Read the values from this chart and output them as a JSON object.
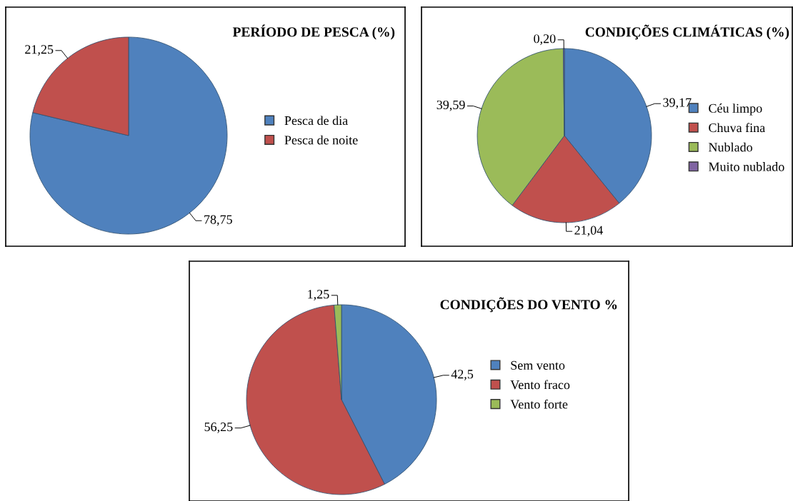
{
  "chart_data": [
    {
      "type": "pie",
      "title": "PERÍODO DE PESCA (%)",
      "categories": [
        "Pesca de dia",
        "Pesca de noite"
      ],
      "values": [
        78.75,
        21.25
      ],
      "colors": [
        "#4f81bd",
        "#c0504d"
      ],
      "value_labels": [
        "78,75",
        "21,25"
      ],
      "legend": "right"
    },
    {
      "type": "pie",
      "title": "CONDIÇÕES CLIMÁTICAS (%)",
      "categories": [
        "Céu limpo",
        "Chuva fina",
        "Nublado",
        "Muito nublado"
      ],
      "values": [
        39.17,
        21.04,
        39.59,
        0.2
      ],
      "colors": [
        "#4f81bd",
        "#c0504d",
        "#9bbb59",
        "#8064a2"
      ],
      "value_labels": [
        "39,17",
        "21,04",
        "39,59",
        "0,20"
      ],
      "legend": "right"
    },
    {
      "type": "pie",
      "title": "CONDIÇÕES DO VENTO %",
      "categories": [
        "Sem vento",
        "Vento fraco",
        "Vento forte"
      ],
      "values": [
        42.5,
        56.25,
        1.25
      ],
      "colors": [
        "#4f81bd",
        "#c0504d",
        "#9bbb59"
      ],
      "value_labels": [
        "42,5",
        "56,25",
        "1,25"
      ],
      "legend": "right"
    }
  ]
}
